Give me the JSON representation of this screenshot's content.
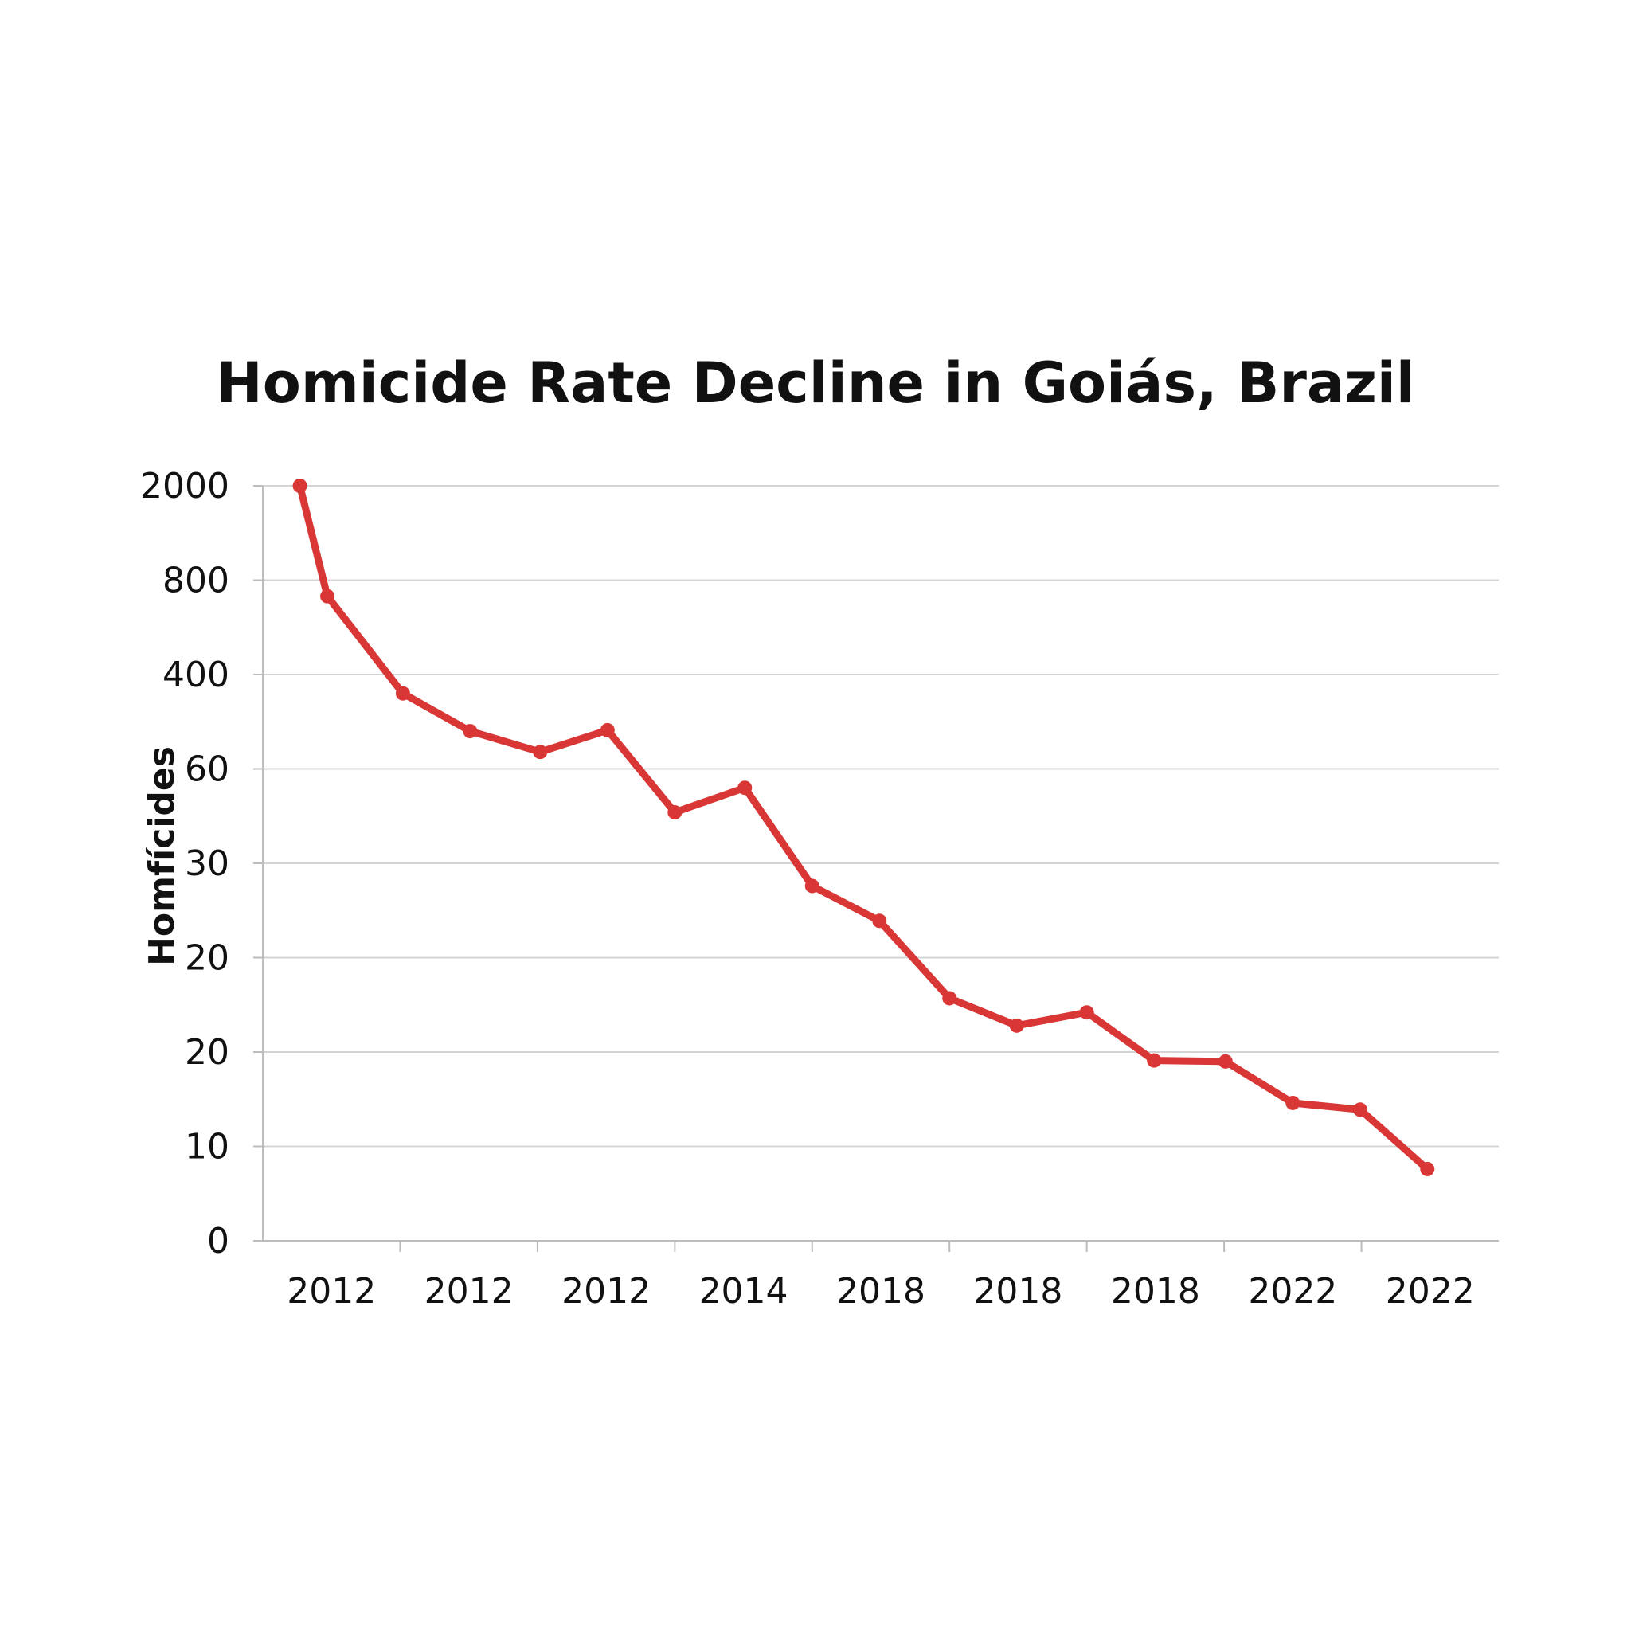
{
  "chart_data": {
    "type": "line",
    "title": "Homicide Rate Decline in Goiás, Brazil",
    "xlabel": "",
    "ylabel": "Homfícides",
    "y_ticks": [
      "2000",
      "800",
      "400",
      "60",
      "30",
      "20",
      "20",
      "10",
      "0"
    ],
    "x_ticks": [
      "2012",
      "2012",
      "2012",
      "2014",
      "2018",
      "2018",
      "2018",
      "2022",
      "2022"
    ],
    "y_scale": "categorical-band",
    "y_tick_index_range": [
      0,
      8
    ],
    "grid": true,
    "legend": "none",
    "colors": {
      "line": "#d93636",
      "grid": "#d4d4d4",
      "axis": "#bdbdbd",
      "text": "#111111"
    },
    "series": [
      {
        "points": [
          {
            "x_band": 0.27,
            "y_tick_index": 8.0
          },
          {
            "x_band": 0.47,
            "y_tick_index": 6.83
          },
          {
            "x_band": 1.02,
            "y_tick_index": 5.8
          },
          {
            "x_band": 1.51,
            "y_tick_index": 5.4
          },
          {
            "x_band": 2.02,
            "y_tick_index": 5.18
          },
          {
            "x_band": 2.51,
            "y_tick_index": 5.41
          },
          {
            "x_band": 3.0,
            "y_tick_index": 4.54
          },
          {
            "x_band": 3.51,
            "y_tick_index": 4.8
          },
          {
            "x_band": 4.0,
            "y_tick_index": 3.76
          },
          {
            "x_band": 4.49,
            "y_tick_index": 3.39
          },
          {
            "x_band": 5.0,
            "y_tick_index": 2.57
          },
          {
            "x_band": 5.49,
            "y_tick_index": 2.28
          },
          {
            "x_band": 6.0,
            "y_tick_index": 2.42
          },
          {
            "x_band": 6.49,
            "y_tick_index": 1.91
          },
          {
            "x_band": 7.01,
            "y_tick_index": 1.9
          },
          {
            "x_band": 7.5,
            "y_tick_index": 1.46
          },
          {
            "x_band": 7.99,
            "y_tick_index": 1.39
          },
          {
            "x_band": 8.48,
            "y_tick_index": 0.76
          }
        ]
      }
    ]
  }
}
